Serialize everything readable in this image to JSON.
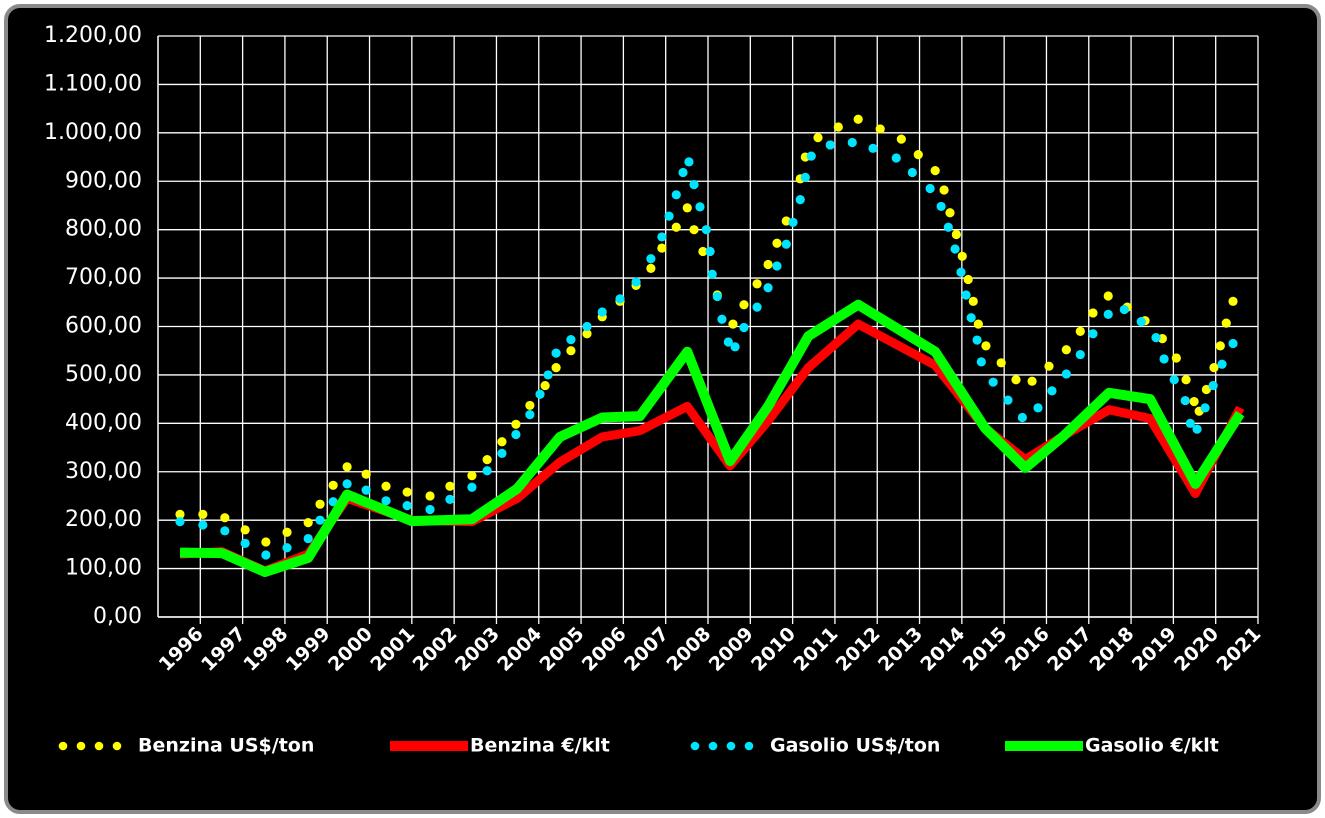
{
  "chart_data": {
    "type": "line",
    "xlim": [
      1995,
      2021
    ],
    "xticks": [
      1996,
      1997,
      1998,
      1999,
      2000,
      2001,
      2002,
      2003,
      2004,
      2005,
      2006,
      2007,
      2008,
      2009,
      2010,
      2011,
      2012,
      2013,
      2014,
      2015,
      2016,
      2017,
      2018,
      2019,
      2020,
      2021
    ],
    "ylim": [
      0,
      1200
    ],
    "yticks": [
      {
        "value": 0,
        "label": "0,00"
      },
      {
        "value": 100,
        "label": "100,00"
      },
      {
        "value": 200,
        "label": "200,00"
      },
      {
        "value": 300,
        "label": "300,00"
      },
      {
        "value": 400,
        "label": "400,00"
      },
      {
        "value": 500,
        "label": "500,00"
      },
      {
        "value": 600,
        "label": "600,00"
      },
      {
        "value": 700,
        "label": "700,00"
      },
      {
        "value": 800,
        "label": "800,00"
      },
      {
        "value": 900,
        "label": "900,00"
      },
      {
        "value": 1000,
        "label": "1.000,00"
      },
      {
        "value": 1100,
        "label": "1.100,00"
      },
      {
        "value": 1200,
        "label": "1.200,00"
      }
    ],
    "grid": true,
    "legend": "bottom",
    "series": [
      {
        "name": "Benzina US$/ton",
        "color": "#ffff00",
        "style": "dots",
        "x": [
          1995.52,
          1996.06,
          1996.58,
          1997.06,
          1997.55,
          1998.05,
          1998.55,
          1998.83,
          1999.14,
          1999.47,
          1999.92,
          2000.39,
          2000.89,
          2001.43,
          2001.9,
          2002.42,
          2002.78,
          2003.13,
          2003.46,
          2003.79,
          2004.15,
          2004.41,
          2004.76,
          2005.14,
          2005.5,
          2005.92,
          2006.3,
          2006.65,
          2006.91,
          2007.25,
          2007.51,
          2007.67,
          2007.88,
          2008.22,
          2008.59,
          2008.85,
          2009.16,
          2009.42,
          2009.63,
          2009.85,
          2010.18,
          2010.3,
          2010.6,
          2011.08,
          2011.55,
          2012.07,
          2012.57,
          2012.97,
          2013.37,
          2013.58,
          2013.72,
          2013.87,
          2014.01,
          2014.15,
          2014.27,
          2014.39,
          2014.57,
          2014.93,
          2015.28,
          2015.66,
          2016.06,
          2016.47,
          2016.8,
          2017.1,
          2017.46,
          2017.91,
          2018.33,
          2018.74,
          2019.07,
          2019.3,
          2019.49,
          2019.61,
          2019.78,
          2019.96,
          2020.11,
          2020.25,
          2020.41
        ],
        "values": [
          212,
          212,
          205,
          180,
          155,
          175,
          195,
          233,
          272,
          310,
          295,
          270,
          258,
          250,
          270,
          292,
          325,
          362,
          398,
          437,
          478,
          515,
          550,
          585,
          620,
          652,
          685,
          720,
          762,
          805,
          845,
          800,
          755,
          665,
          605,
          645,
          688,
          728,
          772,
          818,
          905,
          950,
          990,
          1012,
          1028,
          1008,
          987,
          955,
          922,
          882,
          835,
          790,
          745,
          697,
          652,
          605,
          560,
          525,
          490,
          487,
          518,
          552,
          590,
          628,
          663,
          640,
          612,
          575,
          535,
          490,
          445,
          425,
          470,
          515,
          560,
          607,
          652
        ]
      },
      {
        "name": "Benzina €/klt",
        "color": "#ff0000",
        "style": "line",
        "x": [
          1995.52,
          1996.51,
          1997.53,
          1998.55,
          1999.47,
          2001.0,
          2002.42,
          2003.49,
          2004.5,
          2005.5,
          2006.39,
          2007.51,
          2008.52,
          2009.42,
          2010.37,
          2011.55,
          2013.37,
          2014.55,
          2015.5,
          2016.42,
          2017.48,
          2018.45,
          2019.52,
          2020.58
        ],
        "values": [
          130,
          135,
          95,
          130,
          245,
          200,
          197,
          245,
          320,
          372,
          385,
          435,
          312,
          405,
          515,
          605,
          520,
          390,
          325,
          375,
          428,
          410,
          255,
          432
        ]
      },
      {
        "name": "Gasolio US$/ton",
        "color": "#00e5ff",
        "style": "dots",
        "x": [
          1995.52,
          1996.06,
          1996.58,
          1997.06,
          1997.55,
          1998.05,
          1998.55,
          1998.83,
          1999.14,
          1999.47,
          1999.92,
          2000.39,
          2000.89,
          2001.43,
          2001.9,
          2002.42,
          2002.78,
          2003.13,
          2003.46,
          2003.79,
          2004.03,
          2004.22,
          2004.41,
          2004.76,
          2005.14,
          2005.5,
          2005.92,
          2006.3,
          2006.65,
          2006.91,
          2007.08,
          2007.25,
          2007.41,
          2007.55,
          2007.67,
          2007.81,
          2007.96,
          2008.05,
          2008.1,
          2008.22,
          2008.33,
          2008.48,
          2008.64,
          2008.85,
          2009.16,
          2009.42,
          2009.63,
          2009.85,
          2010.01,
          2010.18,
          2010.3,
          2010.44,
          2010.89,
          2011.41,
          2011.9,
          2012.45,
          2012.83,
          2013.25,
          2013.51,
          2013.68,
          2013.84,
          2013.98,
          2014.1,
          2014.22,
          2014.36,
          2014.46,
          2014.74,
          2015.09,
          2015.43,
          2015.8,
          2016.13,
          2016.47,
          2016.8,
          2017.1,
          2017.46,
          2017.84,
          2018.24,
          2018.59,
          2018.78,
          2019.02,
          2019.28,
          2019.4,
          2019.56,
          2019.75,
          2019.94,
          2020.15,
          2020.41
        ],
        "values": [
          197,
          190,
          178,
          152,
          128,
          143,
          162,
          200,
          238,
          275,
          262,
          240,
          230,
          222,
          243,
          268,
          302,
          338,
          377,
          418,
          460,
          500,
          545,
          573,
          600,
          630,
          657,
          692,
          740,
          785,
          828,
          872,
          918,
          940,
          893,
          847,
          800,
          755,
          708,
          662,
          615,
          568,
          558,
          598,
          640,
          680,
          725,
          770,
          815,
          862,
          908,
          952,
          975,
          980,
          968,
          948,
          918,
          885,
          848,
          805,
          760,
          712,
          665,
          618,
          572,
          527,
          485,
          448,
          412,
          432,
          467,
          502,
          542,
          585,
          625,
          635,
          610,
          577,
          533,
          490,
          447,
          400,
          388,
          432,
          478,
          522,
          565
        ]
      },
      {
        "name": "Gasolio €/klt",
        "color": "#00ff00",
        "style": "line",
        "x": [
          1995.52,
          1996.51,
          1997.53,
          1998.55,
          1999.47,
          2001.0,
          2002.42,
          2003.49,
          2004.5,
          2005.5,
          2006.39,
          2007.51,
          2008.52,
          2009.42,
          2010.37,
          2011.55,
          2013.37,
          2014.55,
          2015.5,
          2016.42,
          2017.48,
          2018.45,
          2019.52,
          2020.58
        ],
        "values": [
          133,
          132,
          93,
          122,
          253,
          198,
          202,
          265,
          372,
          412,
          415,
          548,
          322,
          435,
          580,
          645,
          548,
          390,
          308,
          375,
          463,
          450,
          275,
          420
        ]
      }
    ]
  }
}
